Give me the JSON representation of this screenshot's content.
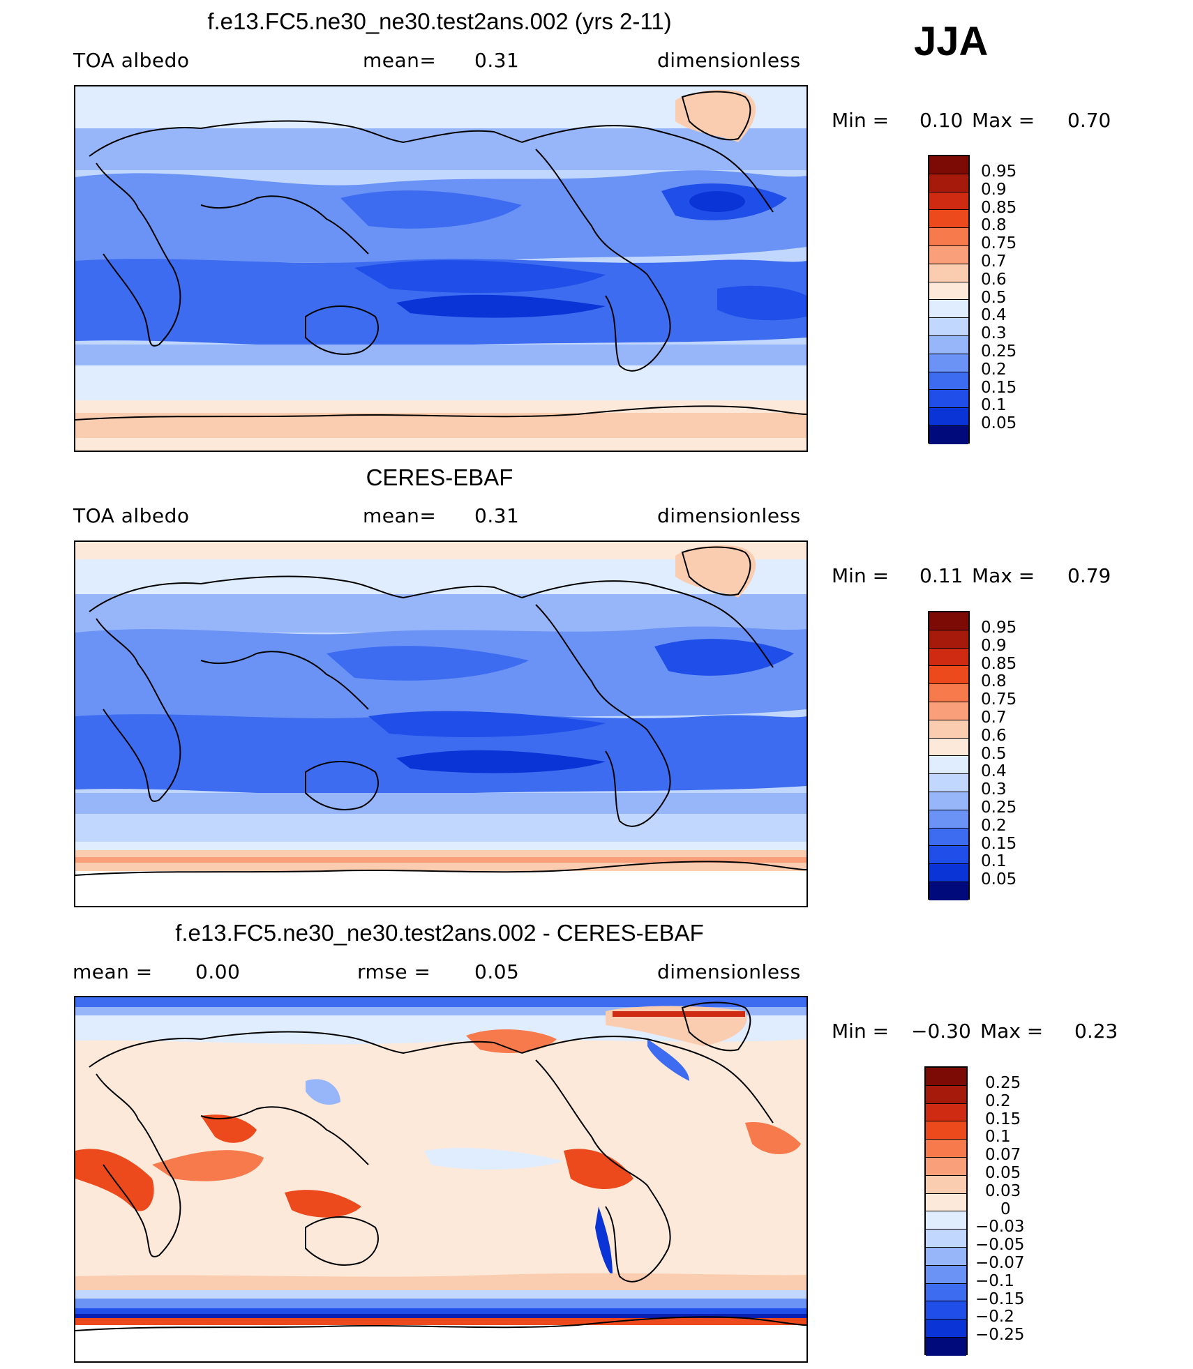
{
  "season": "JJA",
  "palette": {
    "d12": "#000a7a",
    "d11": "#0a1fb0",
    "d10": "#0b34d6",
    "d9": "#1f4ee8",
    "d8": "#3d6cf0",
    "d7": "#6b93f5",
    "d6": "#97b6fa",
    "d5": "#c2d7fd",
    "d4": "#e0edfe",
    "c0": "#fde9d9",
    "c1": "#fbcdb0",
    "c2": "#f9a07a",
    "c3": "#f67a4c",
    "c4": "#ec4a1c",
    "c5": "#cf2b12",
    "c6": "#a51a0a",
    "c7": "#7c0b06",
    "land": "#ffffff",
    "coast": "#000000"
  },
  "panels": [
    {
      "title": "f.e13.FC5.ne30_ne30.test2ans.002 (yrs 2-11)",
      "left": "TOA  albedo",
      "center_label": "mean=",
      "center_value": "0.31",
      "right": "dimensionless",
      "min_label": "Min =",
      "min_value": "0.10",
      "max_label": "Max =",
      "max_value": "0.70",
      "colorbar": [
        "0.95",
        "0.9",
        "0.85",
        "0.8",
        "0.75",
        "0.7",
        "0.6",
        "0.5",
        "0.4",
        "0.3",
        "0.25",
        "0.2",
        "0.15",
        "0.1",
        "0.05"
      ]
    },
    {
      "title": "CERES-EBAF",
      "left": "TOA  albedo",
      "center_label": "mean=",
      "center_value": "0.31",
      "right": "dimensionless",
      "min_label": "Min =",
      "min_value": "0.11",
      "max_label": "Max =",
      "max_value": "0.79",
      "colorbar": [
        "0.95",
        "0.9",
        "0.85",
        "0.8",
        "0.75",
        "0.7",
        "0.6",
        "0.5",
        "0.4",
        "0.3",
        "0.25",
        "0.2",
        "0.15",
        "0.1",
        "0.05"
      ]
    },
    {
      "title": "f.e13.FC5.ne30_ne30.test2ans.002 - CERES-EBAF",
      "left": "mean =",
      "left_value": "0.00",
      "center_label": "rmse =",
      "center_value": "0.05",
      "right": "dimensionless",
      "min_label": "Min =",
      "min_value": "−0.30",
      "max_label": "Max =",
      "max_value": "0.23",
      "colorbar": [
        "0.25",
        "0.2",
        "0.15",
        "0.1",
        "0.07",
        "0.05",
        "0.03",
        "0",
        "−0.03",
        "−0.05",
        "−0.07",
        "−0.1",
        "−0.15",
        "−0.2",
        "−0.25"
      ]
    }
  ]
}
